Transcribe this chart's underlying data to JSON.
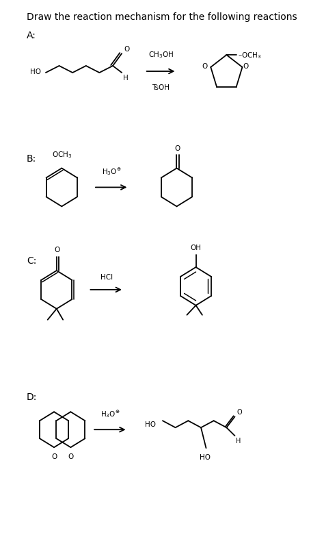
{
  "title": "Draw the reaction mechanism for the following reactions",
  "title_fontsize": 10,
  "title_fontweight": "normal",
  "background_color": "#ffffff",
  "text_color": "#000000",
  "sections": [
    "A:",
    "B:",
    "C:",
    "D:"
  ],
  "fs_chem": 7.5,
  "lw": 1.3,
  "fig_w": 4.74,
  "fig_h": 8.04,
  "dpi": 100
}
